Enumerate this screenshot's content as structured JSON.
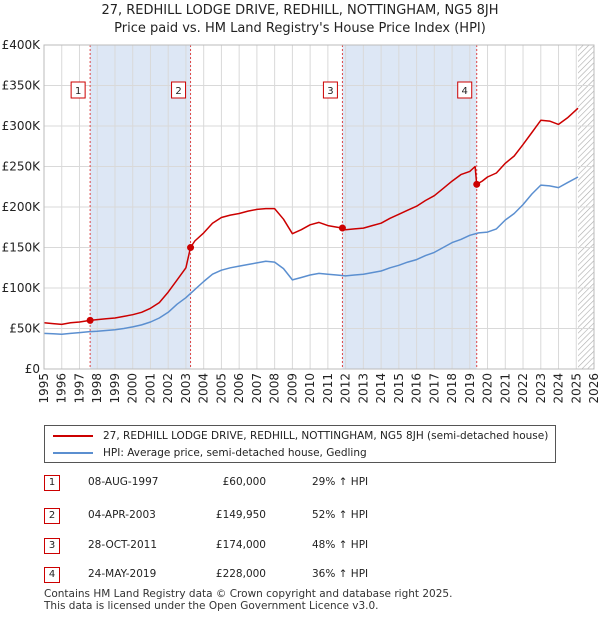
{
  "title_line1": "27, REDHILL LODGE DRIVE, REDHILL, NOTTINGHAM, NG5 8JH",
  "title_line2": "Price paid vs. HM Land Registry's House Price Index (HPI)",
  "colors": {
    "property": "#cc0000",
    "hpi": "#5b8fd0",
    "band": "#dde7f5",
    "grid": "#d9d9d9"
  },
  "chart_data": {
    "type": "line",
    "xlim": [
      1995,
      2026
    ],
    "ylim": [
      0,
      400000
    ],
    "y_ticks": [
      {
        "value": 0,
        "label": "£0"
      },
      {
        "value": 50000,
        "label": "£50K"
      },
      {
        "value": 100000,
        "label": "£100K"
      },
      {
        "value": 150000,
        "label": "£150K"
      },
      {
        "value": 200000,
        "label": "£200K"
      },
      {
        "value": 250000,
        "label": "£250K"
      },
      {
        "value": 300000,
        "label": "£300K"
      },
      {
        "value": 350000,
        "label": "£350K"
      },
      {
        "value": 400000,
        "label": "£400K"
      }
    ],
    "x_ticks": [
      1995,
      1996,
      1997,
      1998,
      1999,
      2000,
      2001,
      2002,
      2003,
      2004,
      2005,
      2006,
      2007,
      2008,
      2009,
      2010,
      2011,
      2012,
      2013,
      2014,
      2015,
      2016,
      2017,
      2018,
      2019,
      2020,
      2021,
      2022,
      2023,
      2024,
      2025,
      2026
    ],
    "shaded_periods": [
      [
        1997.6,
        2003.26
      ],
      [
        2011.82,
        2019.39
      ]
    ],
    "future_hatch_start": 2025.1,
    "series": [
      {
        "name": "27, REDHILL LODGE DRIVE, REDHILL, NOTTINGHAM, NG5 8JH (semi-detached house)",
        "color": "#cc0000",
        "points": [
          [
            1995.0,
            57000
          ],
          [
            1995.5,
            56000
          ],
          [
            1996.0,
            55000
          ],
          [
            1996.5,
            57000
          ],
          [
            1997.0,
            58000
          ],
          [
            1997.6,
            60000
          ],
          [
            1998.0,
            61000
          ],
          [
            1998.5,
            62000
          ],
          [
            1999.0,
            63000
          ],
          [
            1999.5,
            65000
          ],
          [
            2000.0,
            67000
          ],
          [
            2000.5,
            70000
          ],
          [
            2001.0,
            75000
          ],
          [
            2001.5,
            82000
          ],
          [
            2002.0,
            95000
          ],
          [
            2002.5,
            110000
          ],
          [
            2003.0,
            125000
          ],
          [
            2003.26,
            149950
          ],
          [
            2003.5,
            158000
          ],
          [
            2004.0,
            168000
          ],
          [
            2004.5,
            180000
          ],
          [
            2005.0,
            187000
          ],
          [
            2005.5,
            190000
          ],
          [
            2006.0,
            192000
          ],
          [
            2006.5,
            195000
          ],
          [
            2007.0,
            197000
          ],
          [
            2007.5,
            198000
          ],
          [
            2008.0,
            198000
          ],
          [
            2008.5,
            185000
          ],
          [
            2009.0,
            167000
          ],
          [
            2009.5,
            172000
          ],
          [
            2010.0,
            178000
          ],
          [
            2010.5,
            181000
          ],
          [
            2011.0,
            177000
          ],
          [
            2011.82,
            174000
          ],
          [
            2012.0,
            172000
          ],
          [
            2012.5,
            173000
          ],
          [
            2013.0,
            174000
          ],
          [
            2013.5,
            177000
          ],
          [
            2014.0,
            180000
          ],
          [
            2014.5,
            186000
          ],
          [
            2015.0,
            191000
          ],
          [
            2015.5,
            196000
          ],
          [
            2016.0,
            201000
          ],
          [
            2016.5,
            208000
          ],
          [
            2017.0,
            214000
          ],
          [
            2017.5,
            223000
          ],
          [
            2018.0,
            232000
          ],
          [
            2018.5,
            240000
          ],
          [
            2019.0,
            244000
          ],
          [
            2019.3,
            250000
          ],
          [
            2019.39,
            228000
          ],
          [
            2019.7,
            232000
          ],
          [
            2020.0,
            237000
          ],
          [
            2020.5,
            242000
          ],
          [
            2021.0,
            254000
          ],
          [
            2021.5,
            263000
          ],
          [
            2022.0,
            277000
          ],
          [
            2022.5,
            292000
          ],
          [
            2023.0,
            307000
          ],
          [
            2023.5,
            306000
          ],
          [
            2024.0,
            302000
          ],
          [
            2024.5,
            310000
          ],
          [
            2025.1,
            322000
          ]
        ]
      },
      {
        "name": "HPI: Average price, semi-detached house, Gedling",
        "color": "#5b8fd0",
        "points": [
          [
            1995.0,
            44000
          ],
          [
            1995.5,
            43500
          ],
          [
            1996.0,
            43000
          ],
          [
            1996.5,
            44000
          ],
          [
            1997.0,
            45000
          ],
          [
            1997.5,
            46000
          ],
          [
            1998.0,
            46500
          ],
          [
            1998.5,
            47500
          ],
          [
            1999.0,
            48500
          ],
          [
            1999.5,
            50000
          ],
          [
            2000.0,
            52000
          ],
          [
            2000.5,
            54500
          ],
          [
            2001.0,
            58000
          ],
          [
            2001.5,
            63000
          ],
          [
            2002.0,
            70000
          ],
          [
            2002.5,
            80000
          ],
          [
            2003.0,
            88000
          ],
          [
            2003.5,
            98000
          ],
          [
            2004.0,
            108000
          ],
          [
            2004.5,
            117000
          ],
          [
            2005.0,
            122000
          ],
          [
            2005.5,
            125000
          ],
          [
            2006.0,
            127000
          ],
          [
            2006.5,
            129000
          ],
          [
            2007.0,
            131000
          ],
          [
            2007.5,
            133000
          ],
          [
            2008.0,
            132000
          ],
          [
            2008.5,
            124000
          ],
          [
            2009.0,
            110000
          ],
          [
            2009.5,
            113000
          ],
          [
            2010.0,
            116000
          ],
          [
            2010.5,
            118000
          ],
          [
            2011.0,
            117000
          ],
          [
            2011.5,
            116000
          ],
          [
            2012.0,
            115000
          ],
          [
            2012.5,
            116000
          ],
          [
            2013.0,
            117000
          ],
          [
            2013.5,
            119000
          ],
          [
            2014.0,
            121000
          ],
          [
            2014.5,
            125000
          ],
          [
            2015.0,
            128000
          ],
          [
            2015.5,
            132000
          ],
          [
            2016.0,
            135000
          ],
          [
            2016.5,
            140000
          ],
          [
            2017.0,
            144000
          ],
          [
            2017.5,
            150000
          ],
          [
            2018.0,
            156000
          ],
          [
            2018.5,
            160000
          ],
          [
            2019.0,
            165000
          ],
          [
            2019.5,
            168000
          ],
          [
            2020.0,
            169000
          ],
          [
            2020.5,
            173000
          ],
          [
            2021.0,
            184000
          ],
          [
            2021.5,
            192000
          ],
          [
            2022.0,
            203000
          ],
          [
            2022.5,
            216000
          ],
          [
            2023.0,
            227000
          ],
          [
            2023.5,
            226000
          ],
          [
            2024.0,
            224000
          ],
          [
            2024.5,
            230000
          ],
          [
            2025.1,
            237000
          ]
        ]
      }
    ],
    "markers": [
      {
        "label": "1",
        "x": 1997.6,
        "y": 60000
      },
      {
        "label": "2",
        "x": 2003.26,
        "y": 149950
      },
      {
        "label": "3",
        "x": 2011.82,
        "y": 174000
      },
      {
        "label": "4",
        "x": 2019.39,
        "y": 228000
      }
    ]
  },
  "legend": {
    "property_label": "27, REDHILL LODGE DRIVE, REDHILL, NOTTINGHAM, NG5 8JH (semi-detached house)",
    "hpi_label": "HPI: Average price, semi-detached house, Gedling"
  },
  "sales": [
    {
      "num": "1",
      "date": "08-AUG-1997",
      "price": "£60,000",
      "hpi": "29% ↑ HPI"
    },
    {
      "num": "2",
      "date": "04-APR-2003",
      "price": "£149,950",
      "hpi": "52% ↑ HPI"
    },
    {
      "num": "3",
      "date": "28-OCT-2011",
      "price": "£174,000",
      "hpi": "48% ↑ HPI"
    },
    {
      "num": "4",
      "date": "24-MAY-2019",
      "price": "£228,000",
      "hpi": "36% ↑ HPI"
    }
  ],
  "footer_line1": "Contains HM Land Registry data © Crown copyright and database right 2025.",
  "footer_line2": "This data is licensed under the Open Government Licence v3.0."
}
